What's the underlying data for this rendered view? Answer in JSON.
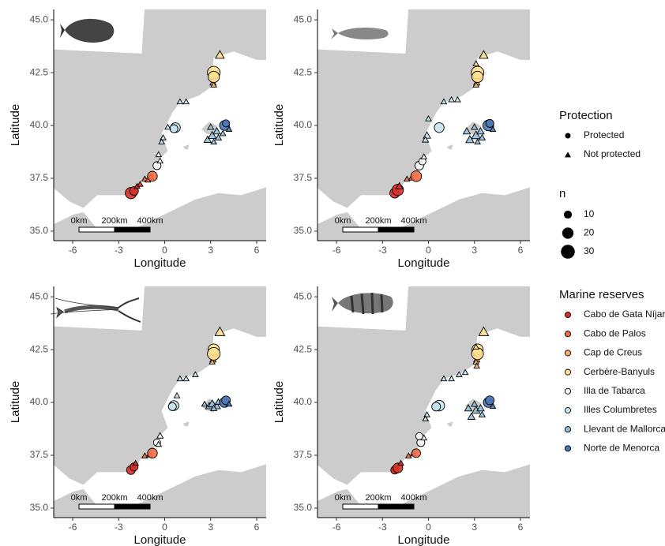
{
  "chart_data": [
    {
      "type": "scatter",
      "xlabel": "Longitude",
      "ylabel": "Latitude",
      "xlim": [
        -7.24,
        6.62
      ],
      "ylim": [
        34.55,
        45.49
      ],
      "xticks": [
        -6,
        -3,
        0,
        3,
        6
      ],
      "yticks": [
        {
          "value": 35,
          "label": "35.0"
        },
        37.5,
        {
          "value": 40,
          "label": "40.0"
        },
        42.5,
        {
          "value": 45,
          "label": "45.0"
        }
      ],
      "scalebar": [
        "0km",
        "200km",
        "400km"
      ],
      "series": [
        {
          "x": [
            -2.2,
            -2.0,
            -1.8,
            -1.6
          ],
          "y": [
            36.8,
            36.9,
            37.1,
            37.2
          ],
          "n": [
            20,
            12,
            5,
            5
          ],
          "protected": [
            true,
            true,
            false,
            false
          ]
        },
        {
          "x": [
            -1.3,
            -1.1,
            -0.9,
            -0.8
          ],
          "y": [
            37.45,
            37.4,
            37.55,
            37.6
          ],
          "n": [
            5,
            5,
            5,
            15
          ],
          "protected": [
            false,
            false,
            false,
            true
          ]
        },
        {
          "x": [
            3.15,
            3.15,
            3.2
          ],
          "y": [
            42.0,
            42.2,
            41.9
          ],
          "n": [
            6,
            5,
            5
          ],
          "protected": [
            false,
            true,
            false
          ]
        },
        {
          "x": [
            3.6,
            3.2,
            3.2
          ],
          "y": [
            43.3,
            42.5,
            42.3
          ],
          "n": [
            12,
            25,
            20
          ],
          "protected": [
            false,
            true,
            true
          ]
        },
        {
          "x": [
            -0.5,
            -0.3,
            -0.4
          ],
          "y": [
            38.1,
            38.3,
            38.6
          ],
          "n": [
            10,
            5,
            5
          ],
          "protected": [
            true,
            false,
            false
          ]
        },
        {
          "x": [
            0.7,
            0.6,
            -0.1,
            -0.2,
            0.2,
            1.0,
            1.4
          ],
          "y": [
            39.9,
            39.85,
            39.4,
            39.2,
            39.9,
            41.1,
            41.1
          ],
          "n": [
            15,
            10,
            5,
            5,
            5,
            5,
            5
          ],
          "protected": [
            true,
            true,
            false,
            false,
            false,
            false,
            false
          ]
        },
        {
          "x": [
            2.8,
            3.1,
            3.4,
            3.0,
            3.5,
            3.2,
            3.8
          ],
          "y": [
            39.3,
            39.5,
            39.7,
            39.9,
            39.4,
            39.2,
            39.6
          ],
          "n": [
            8,
            10,
            8,
            6,
            6,
            5,
            5
          ],
          "protected": [
            false,
            false,
            false,
            false,
            false,
            false,
            false
          ]
        },
        {
          "x": [
            3.9,
            4.0,
            4.2
          ],
          "y": [
            40.0,
            40.1,
            39.8
          ],
          "n": [
            15,
            8,
            5
          ],
          "protected": [
            true,
            true,
            false
          ]
        }
      ]
    },
    {
      "type": "scatter",
      "xlabel": "Longitude",
      "ylabel": "Latitude",
      "xlim": [
        -7.24,
        6.62
      ],
      "ylim": [
        34.55,
        45.49
      ],
      "xticks": [
        -6,
        -3,
        0,
        3,
        6
      ],
      "yticks": [
        {
          "value": 35,
          "label": "35.0"
        },
        37.5,
        {
          "value": 40,
          "label": "40.0"
        },
        42.5,
        {
          "value": 45,
          "label": "45.0"
        }
      ],
      "scalebar": [
        "0km",
        "200km",
        "400km"
      ],
      "series": [
        {
          "x": [
            -2.2,
            -2.0,
            -1.9
          ],
          "y": [
            36.8,
            36.95,
            37.1
          ],
          "n": [
            15,
            20,
            8
          ],
          "protected": [
            true,
            true,
            false
          ]
        },
        {
          "x": [
            -1.4,
            -1.1,
            -0.8
          ],
          "y": [
            37.45,
            37.5,
            37.6
          ],
          "n": [
            5,
            5,
            18
          ],
          "protected": [
            false,
            false,
            true
          ]
        },
        {
          "x": [
            3.15,
            3.2,
            3.1
          ],
          "y": [
            42.0,
            42.2,
            41.9
          ],
          "n": [
            6,
            5,
            5
          ],
          "protected": [
            false,
            true,
            false
          ]
        },
        {
          "x": [
            3.6,
            3.2,
            3.2,
            3.1
          ],
          "y": [
            43.3,
            42.5,
            42.3,
            42.9
          ],
          "n": [
            12,
            25,
            20,
            5
          ],
          "protected": [
            false,
            true,
            true,
            false
          ]
        },
        {
          "x": [
            -0.6,
            -0.4,
            -0.3
          ],
          "y": [
            38.1,
            38.3,
            38.5
          ],
          "n": [
            12,
            8,
            5
          ],
          "protected": [
            true,
            true,
            false
          ]
        },
        {
          "x": [
            0.7,
            -0.1,
            -0.2,
            0.0,
            1.0,
            1.5,
            1.9
          ],
          "y": [
            39.9,
            39.5,
            39.3,
            40.3,
            41.1,
            41.2,
            41.2
          ],
          "n": [
            15,
            8,
            6,
            5,
            5,
            5,
            5
          ],
          "protected": [
            true,
            false,
            false,
            false,
            false,
            false,
            false
          ]
        },
        {
          "x": [
            2.7,
            3.1,
            3.4,
            3.0,
            3.5,
            3.2,
            2.5
          ],
          "y": [
            39.3,
            39.5,
            39.7,
            39.9,
            39.4,
            39.2,
            39.7
          ],
          "n": [
            10,
            12,
            8,
            6,
            6,
            5,
            8
          ],
          "protected": [
            false,
            false,
            false,
            false,
            false,
            false,
            false
          ]
        },
        {
          "x": [
            3.9,
            4.0,
            4.2
          ],
          "y": [
            40.0,
            40.1,
            39.8
          ],
          "n": [
            18,
            10,
            5
          ],
          "protected": [
            true,
            true,
            false
          ]
        }
      ]
    },
    {
      "type": "scatter",
      "xlabel": "Longitude",
      "ylabel": "Latitude",
      "xlim": [
        -7.24,
        6.62
      ],
      "ylim": [
        34.55,
        45.49
      ],
      "xticks": [
        -6,
        -3,
        0,
        3,
        6
      ],
      "yticks": [
        {
          "value": 35,
          "label": "35.0"
        },
        37.5,
        {
          "value": 40,
          "label": "40.0"
        },
        42.5,
        {
          "value": 45,
          "label": "45.0"
        }
      ],
      "scalebar": [
        "0km",
        "200km",
        "400km"
      ],
      "series": [
        {
          "x": [
            -2.2,
            -2.0,
            -1.9
          ],
          "y": [
            36.8,
            36.95,
            37.1
          ],
          "n": [
            12,
            10,
            5
          ],
          "protected": [
            true,
            true,
            false
          ]
        },
        {
          "x": [
            -1.3,
            -1.0,
            -0.8
          ],
          "y": [
            37.45,
            37.5,
            37.6
          ],
          "n": [
            5,
            5,
            15
          ],
          "protected": [
            false,
            false,
            true
          ]
        },
        {
          "x": [
            3.15,
            3.2,
            3.1
          ],
          "y": [
            42.0,
            42.2,
            41.9
          ],
          "n": [
            6,
            10,
            5
          ],
          "protected": [
            false,
            true,
            false
          ]
        },
        {
          "x": [
            3.6,
            3.2,
            3.2
          ],
          "y": [
            43.3,
            42.5,
            42.3
          ],
          "n": [
            15,
            20,
            25
          ],
          "protected": [
            false,
            true,
            true
          ]
        },
        {
          "x": [
            -0.5,
            -0.3,
            -0.4
          ],
          "y": [
            38.1,
            38.4,
            38.0
          ],
          "n": [
            8,
            6,
            5
          ],
          "protected": [
            true,
            false,
            false
          ]
        },
        {
          "x": [
            0.6,
            0.5,
            0.8,
            1.0,
            1.4,
            2.0
          ],
          "y": [
            39.85,
            39.8,
            40.3,
            41.1,
            41.1,
            41.3
          ],
          "n": [
            15,
            10,
            5,
            5,
            5,
            5
          ],
          "protected": [
            true,
            true,
            false,
            false,
            false,
            false
          ]
        },
        {
          "x": [
            2.9,
            3.1,
            3.4,
            3.5,
            3.2,
            2.6
          ],
          "y": [
            39.8,
            39.9,
            39.8,
            40.0,
            39.7,
            39.9
          ],
          "n": [
            8,
            10,
            8,
            6,
            6,
            5
          ],
          "protected": [
            false,
            false,
            false,
            false,
            false,
            false
          ]
        },
        {
          "x": [
            3.9,
            4.0,
            4.2
          ],
          "y": [
            40.0,
            40.1,
            39.9
          ],
          "n": [
            15,
            12,
            5
          ],
          "protected": [
            true,
            true,
            false
          ]
        }
      ]
    },
    {
      "type": "scatter",
      "xlabel": "Longitude",
      "ylabel": "Latitude",
      "xlim": [
        -7.24,
        6.62
      ],
      "ylim": [
        34.55,
        45.49
      ],
      "xticks": [
        -6,
        -3,
        0,
        3,
        6
      ],
      "yticks": [
        {
          "value": 35,
          "label": "35.0"
        },
        37.5,
        {
          "value": 40,
          "label": "40.0"
        },
        42.5,
        {
          "value": 45,
          "label": "45.0"
        }
      ],
      "scalebar": [
        "0km",
        "200km",
        "400km"
      ],
      "series": [
        {
          "x": [
            -2.2,
            -2.0,
            -1.8
          ],
          "y": [
            36.8,
            36.9,
            37.1
          ],
          "n": [
            10,
            15,
            5
          ],
          "protected": [
            true,
            true,
            false
          ]
        },
        {
          "x": [
            -1.3,
            -1.0,
            -0.8
          ],
          "y": [
            37.45,
            37.55,
            37.6
          ],
          "n": [
            5,
            5,
            12
          ],
          "protected": [
            false,
            false,
            true
          ]
        },
        {
          "x": [
            3.15,
            3.2,
            3.1,
            3.15
          ],
          "y": [
            42.0,
            42.2,
            41.9,
            41.7
          ],
          "n": [
            6,
            8,
            5,
            5
          ],
          "protected": [
            false,
            true,
            false,
            false
          ]
        },
        {
          "x": [
            3.6,
            3.2,
            3.2,
            3.1
          ],
          "y": [
            43.3,
            42.5,
            42.3,
            42.6
          ],
          "n": [
            15,
            20,
            22,
            5
          ],
          "protected": [
            false,
            true,
            true,
            false
          ]
        },
        {
          "x": [
            -0.5,
            -0.3,
            -0.6
          ],
          "y": [
            38.1,
            38.3,
            38.4
          ],
          "n": [
            10,
            5,
            8
          ],
          "protected": [
            true,
            false,
            true
          ]
        },
        {
          "x": [
            0.7,
            0.5,
            -0.1,
            -0.2,
            1.0,
            1.5,
            2.0,
            2.4
          ],
          "y": [
            39.85,
            39.8,
            39.4,
            39.2,
            41.1,
            41.1,
            41.3,
            41.4
          ],
          "n": [
            18,
            12,
            5,
            5,
            5,
            5,
            5,
            5
          ],
          "protected": [
            true,
            true,
            false,
            false,
            false,
            false,
            false,
            false
          ]
        },
        {
          "x": [
            2.8,
            3.1,
            3.4,
            3.0,
            3.5,
            2.6
          ],
          "y": [
            39.3,
            39.6,
            39.7,
            39.9,
            39.4,
            39.7
          ],
          "n": [
            8,
            10,
            8,
            6,
            6,
            8
          ],
          "protected": [
            false,
            false,
            false,
            false,
            false,
            false
          ]
        },
        {
          "x": [
            3.9,
            4.0,
            4.2
          ],
          "y": [
            40.0,
            40.1,
            39.8
          ],
          "n": [
            15,
            12,
            5
          ],
          "protected": [
            true,
            true,
            false
          ]
        }
      ]
    }
  ],
  "legend": {
    "protection": {
      "title": "Protection",
      "labels": [
        "Protected",
        "Not protected"
      ]
    },
    "size": {
      "title": "n",
      "values": [
        10,
        20,
        30
      ]
    },
    "reserves": {
      "title": "Marine reserves",
      "names": [
        "Cabo de Gata Níjar",
        "Cabo de Palos",
        "Cap de Creus",
        "Cerbère-Banyuls",
        "Illa de Tabarca",
        "Illes Columbretes",
        "Llevant de Mallorca",
        "Norte de Menorca"
      ],
      "colors": [
        "#d73027",
        "#f46d43",
        "#fdae61",
        "#fee090",
        "#f7f7f7",
        "#c6e4ef",
        "#91bfdb",
        "#4a78b5"
      ]
    }
  }
}
